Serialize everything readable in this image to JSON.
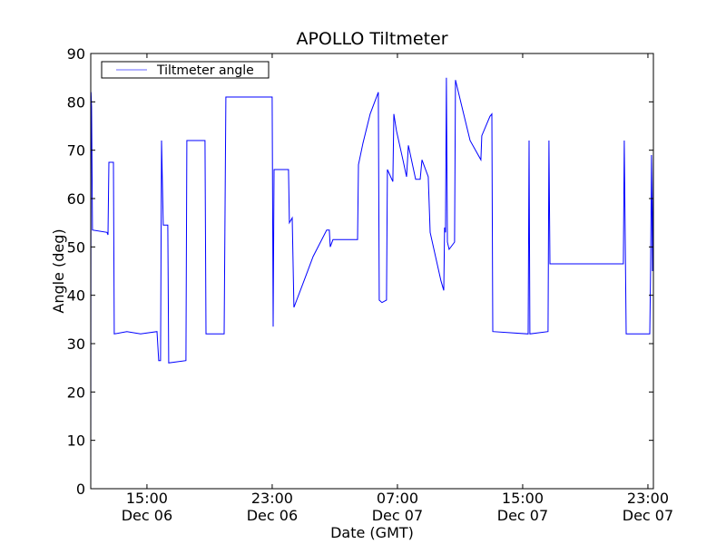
{
  "chart_data": {
    "type": "line",
    "title": "APOLLO Tiltmeter",
    "xlabel": "Date (GMT)",
    "ylabel": "Angle (deg)",
    "x_units": "hours since Dec 06 00:00 GMT",
    "xlim": [
      11.41,
      47.35
    ],
    "ylim": [
      0,
      90
    ],
    "yticks": [
      0,
      10,
      20,
      30,
      40,
      50,
      60,
      70,
      80,
      90
    ],
    "xticks": [
      {
        "value": 15,
        "time": "15:00",
        "date": "Dec 06"
      },
      {
        "value": 23,
        "time": "23:00",
        "date": "Dec 06"
      },
      {
        "value": 31,
        "time": "07:00",
        "date": "Dec 07"
      },
      {
        "value": 39,
        "time": "15:00",
        "date": "Dec 07"
      },
      {
        "value": 47,
        "time": "23:00",
        "date": "Dec 07"
      }
    ],
    "legend": {
      "placement": "top-left",
      "entries": [
        "Tiltmeter angle"
      ]
    },
    "grid": false,
    "series": [
      {
        "name": "Tiltmeter angle",
        "color": "#0000ff",
        "x": [
          11.41,
          11.43,
          11.46,
          11.52,
          12.45,
          12.51,
          12.57,
          12.86,
          12.91,
          13.72,
          14.59,
          15.64,
          15.75,
          15.87,
          15.93,
          16.04,
          16.33,
          16.39,
          17.49,
          17.55,
          18.71,
          18.77,
          19.93,
          20.04,
          23.0,
          23.06,
          23.12,
          24.04,
          24.1,
          24.28,
          24.39,
          25.03,
          25.61,
          26.48,
          26.65,
          26.71,
          26.88,
          28.45,
          28.51,
          28.8,
          29.26,
          29.78,
          29.84,
          30.01,
          30.3,
          30.36,
          30.71,
          30.77,
          30.94,
          31.35,
          31.58,
          31.7,
          32.16,
          32.45,
          32.57,
          32.97,
          33.09,
          33.78,
          33.96,
          34.01,
          34.07,
          34.13,
          34.19,
          34.3,
          34.65,
          34.71,
          35.64,
          36.33,
          36.39,
          36.91,
          37.03,
          37.09,
          39.35,
          39.41,
          39.46,
          40.62,
          40.68,
          40.74,
          45.43,
          45.49,
          45.61,
          47.12,
          47.17,
          47.23,
          47.29,
          47.35
        ],
        "y": [
          0,
          82,
          79,
          53.5,
          53,
          52.5,
          67.5,
          67.5,
          32,
          32.5,
          32,
          32.5,
          26.5,
          26.5,
          72,
          54.5,
          54.5,
          26,
          26.5,
          72,
          72,
          32,
          32,
          81,
          81,
          33.5,
          66,
          66,
          55,
          56,
          37.5,
          43,
          48,
          53.5,
          53.5,
          50,
          51.5,
          51.5,
          67,
          71.5,
          77.5,
          82,
          39,
          38.5,
          39,
          66,
          63.5,
          77.5,
          74,
          68,
          64.5,
          71,
          64,
          64,
          68,
          64.5,
          53,
          43,
          41,
          54,
          53,
          85,
          51,
          49.5,
          51,
          84.5,
          72,
          68,
          73,
          77,
          77.5,
          32.5,
          32,
          72,
          32,
          32.5,
          72,
          46.5,
          46.5,
          72,
          32,
          32,
          45,
          69,
          45,
          69
        ]
      }
    ]
  }
}
